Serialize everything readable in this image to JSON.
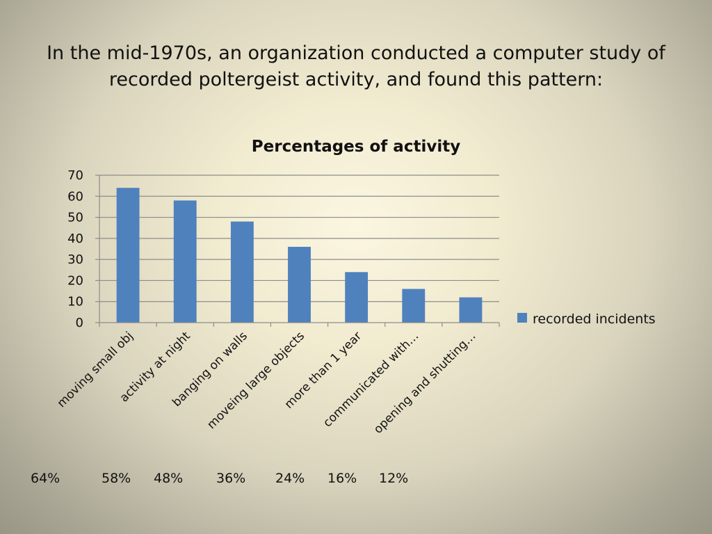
{
  "slide": {
    "title_lines": [
      "In the mid-1970s, an organization conducted a computer study of",
      "recorded poltergeist activity, and found this pattern:"
    ],
    "percent_labels": [
      "64%",
      "58%",
      "48%",
      "36%",
      "24%",
      "16%",
      "12%"
    ]
  },
  "chart_data": {
    "type": "bar",
    "title": "Percentages of activity",
    "categories": [
      "moving small obj",
      "activity at night",
      "banging on walls",
      "moveing large objects",
      "more than 1 year",
      "communicated with…",
      "opening and shutting…"
    ],
    "series": [
      {
        "name": "recorded incidents",
        "values": [
          64,
          58,
          48,
          36,
          24,
          16,
          12
        ]
      }
    ],
    "ylim": [
      0,
      70
    ],
    "yticks": [
      0,
      10,
      20,
      30,
      40,
      50,
      60,
      70
    ],
    "grid": true,
    "legend": "right",
    "bar_color": "#4f81bd",
    "grid_color": "#8c8c8c"
  }
}
